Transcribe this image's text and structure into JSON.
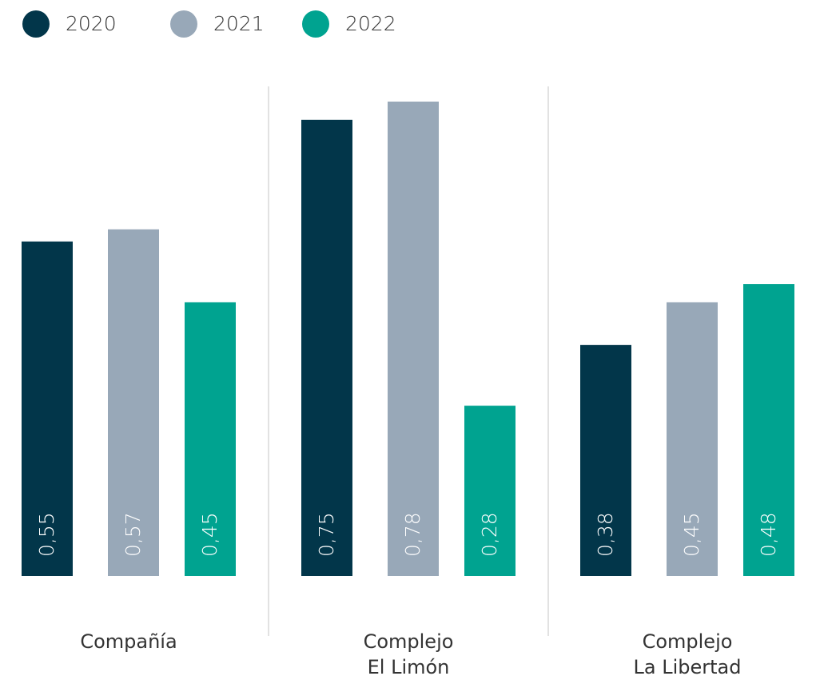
{
  "chart_data": {
    "type": "bar",
    "categories": [
      "Compañía",
      "Complejo\nEl Limón",
      "Complejo\nLa Libertad"
    ],
    "series": [
      {
        "name": "2020",
        "color": "#02364a",
        "values": [
          0.55,
          0.75,
          0.38
        ],
        "value_labels": [
          "0,55",
          "0,75",
          "0,38"
        ]
      },
      {
        "name": "2021",
        "color": "#98a8b8",
        "values": [
          0.57,
          0.78,
          0.45
        ],
        "value_labels": [
          "0,57",
          "0,78",
          "0,45"
        ]
      },
      {
        "name": "2022",
        "color": "#00a390",
        "values": [
          0.45,
          0.28,
          0.48
        ],
        "value_labels": [
          "0,45",
          "0,28",
          "0,48"
        ]
      }
    ],
    "legend": "top-left"
  }
}
